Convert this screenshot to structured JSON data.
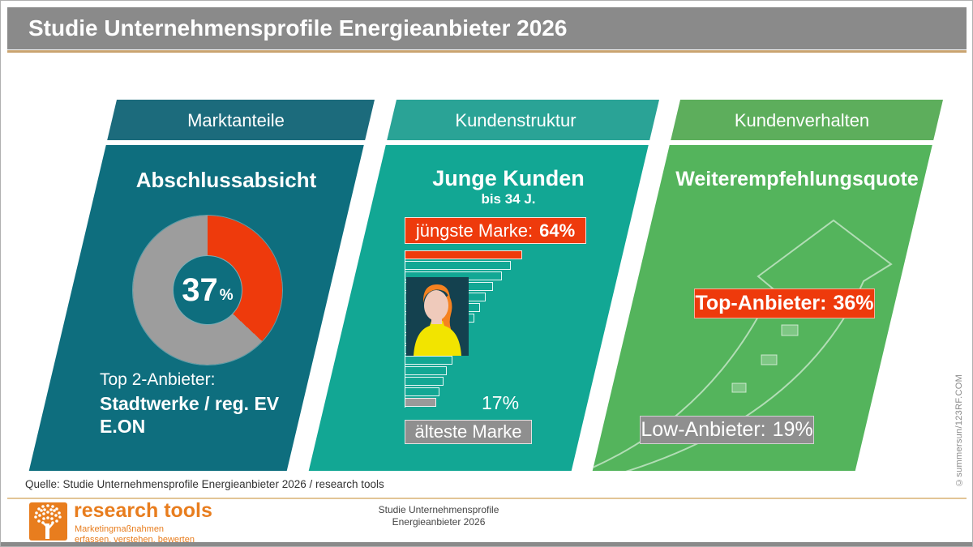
{
  "page": {
    "title": "Studie Unternehmensprofile Energieanbieter 2026"
  },
  "colors": {
    "header_gray": "#8a8a8a",
    "tan_accent": "#c9a36f",
    "panel1_band": "#1c6b7c",
    "panel1_body": "#0e6e7e",
    "panel2_band": "#2aa396",
    "panel2_body": "#12a794",
    "panel3_band": "#5dae5c",
    "panel3_body": "#54b45c",
    "accent_red": "#ee3a0c",
    "accent_gray": "#8f8f8f",
    "logo_orange": "#e87d1e",
    "avatar_bg": "#14414f"
  },
  "panels": [
    {
      "tab": "Marktanteile",
      "heading": "Abschlussabsicht",
      "value": "37",
      "unit": "%",
      "note_label": "Top 2-Anbieter:",
      "note_line1": "Stadtwerke / reg. EV",
      "note_line2": "E.ON"
    },
    {
      "tab": "Kundenstruktur",
      "heading": "Junge Kunden",
      "subheading": "bis 34 J.",
      "top_box": {
        "label": "jüngste Marke:",
        "value": "64%"
      },
      "bottom_value": "17%",
      "bottom_box": "älteste Marke"
    },
    {
      "tab": "Kundenverhalten",
      "heading": "Weiterempfehlungsquote",
      "top_box": {
        "label": "Top-Anbieter:",
        "value": "36%"
      },
      "low_box": {
        "label": "Low-Anbieter:",
        "value": "19%"
      }
    }
  ],
  "source_line": "Quelle: Studie Unternehmensprofile  Energieanbieter  2026 / research tools",
  "footer": {
    "logo_text": "research tools",
    "tagline1": "Marketingmaßnahmen",
    "tagline2": "erfassen, verstehen, bewerten",
    "center_line1": "Studie Unternehmensprofile",
    "center_line2": "Energieanbieter  2026"
  },
  "credit": "©summersun/123RF.COM",
  "chart_data": [
    {
      "type": "pie",
      "donut": true,
      "title": "Abschlussabsicht",
      "panel": "Marktanteile",
      "center_label": "37%",
      "values": [
        {
          "label": "Abschlussabsicht Top 2-Anbieter (Stadtwerke / reg. EV, E.ON)",
          "value": 37,
          "color": "#ee3a0c"
        },
        {
          "label": "Rest",
          "value": 63,
          "color": "#9d9d9d"
        }
      ]
    },
    {
      "type": "bar",
      "orientation": "horizontal",
      "title": "Junge Kunden bis 34 J.",
      "panel": "Kundenstruktur",
      "note": "Markenranking nach Anteil junger Kunden, von jüngster zu ältester Marke",
      "values": [
        64,
        58,
        53,
        48,
        44,
        41,
        38,
        35,
        32,
        29,
        26,
        23,
        21,
        19,
        17
      ],
      "highlight_first": {
        "label": "jüngste Marke",
        "value": 64,
        "color": "#ee3a0c"
      },
      "highlight_last": {
        "label": "älteste Marke",
        "value": 17,
        "color": "#9a9a9a"
      },
      "xlim": [
        0,
        64
      ]
    },
    {
      "type": "bar",
      "title": "Weiterempfehlungsquote",
      "panel": "Kundenverhalten",
      "categories": [
        "Top-Anbieter",
        "Low-Anbieter"
      ],
      "values": [
        36,
        19
      ]
    }
  ]
}
